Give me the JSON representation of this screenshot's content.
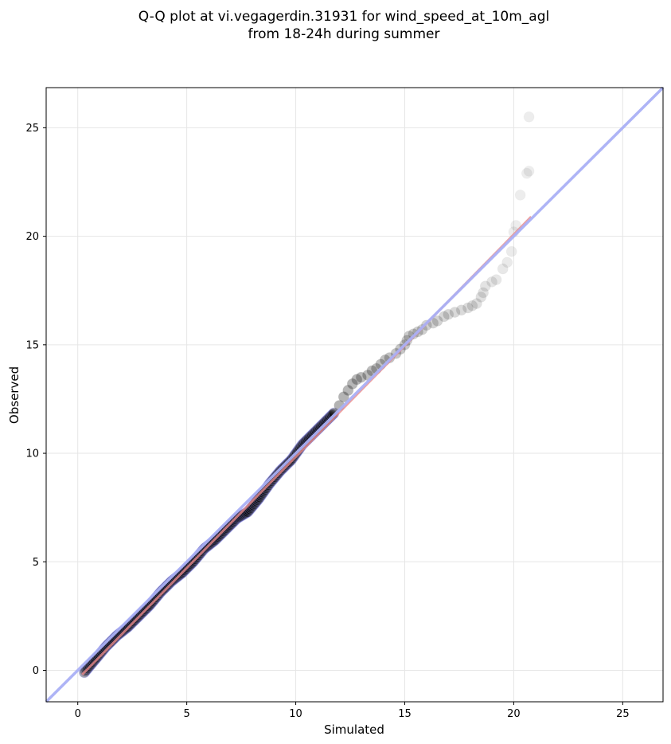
{
  "chart_data": {
    "type": "scatter",
    "title": [
      "Q-Q plot at vi.vegagerdin.31931 for wind_speed_at_10m_agl",
      "from 18-24h during summer"
    ],
    "xlabel": "Simulated",
    "ylabel": "Observed",
    "xlim": [
      -1.45,
      26.85
    ],
    "ylim": [
      -1.45,
      26.85
    ],
    "xticks": [
      0,
      5,
      10,
      15,
      20,
      25
    ],
    "yticks": [
      0,
      5,
      10,
      15,
      20,
      25
    ],
    "grid": true,
    "colors": {
      "identity_line": "#aab0f5",
      "fit_line": "#e88a8a",
      "point_fill": "#000000",
      "point_edge": "#9999ff"
    },
    "identity_line": {
      "from": [
        -1.45,
        -1.45
      ],
      "to": [
        26.85,
        26.85
      ]
    },
    "fit_line": {
      "from": [
        0.2,
        -0.2
      ],
      "to": [
        20.8,
        20.9
      ]
    },
    "points": {
      "dense_path": [
        [
          0.3,
          -0.1
        ],
        [
          0.8,
          0.5
        ],
        [
          1.3,
          1.1
        ],
        [
          1.8,
          1.6
        ],
        [
          2.3,
          2.0
        ],
        [
          2.8,
          2.5
        ],
        [
          3.3,
          3.0
        ],
        [
          3.8,
          3.6
        ],
        [
          4.3,
          4.1
        ],
        [
          4.8,
          4.5
        ],
        [
          5.3,
          5.0
        ],
        [
          5.8,
          5.6
        ],
        [
          6.3,
          6.0
        ],
        [
          6.8,
          6.5
        ],
        [
          7.3,
          7.0
        ],
        [
          7.8,
          7.3
        ],
        [
          8.3,
          7.9
        ],
        [
          8.8,
          8.6
        ],
        [
          9.3,
          9.2
        ],
        [
          9.8,
          9.7
        ],
        [
          10.3,
          10.4
        ],
        [
          10.8,
          10.9
        ],
        [
          11.3,
          11.4
        ],
        [
          11.8,
          11.9
        ]
      ],
      "tail": [
        [
          12.0,
          12.2
        ],
        [
          12.2,
          12.6
        ],
        [
          12.4,
          12.9
        ],
        [
          12.6,
          13.2
        ],
        [
          12.8,
          13.4
        ],
        [
          13.0,
          13.5
        ],
        [
          13.3,
          13.6
        ],
        [
          13.5,
          13.8
        ],
        [
          13.7,
          13.9
        ],
        [
          13.9,
          14.1
        ],
        [
          14.1,
          14.3
        ],
        [
          14.3,
          14.4
        ],
        [
          14.6,
          14.6
        ],
        [
          14.8,
          14.8
        ],
        [
          15.0,
          15.0
        ],
        [
          15.1,
          15.2
        ],
        [
          15.2,
          15.4
        ],
        [
          15.4,
          15.5
        ],
        [
          15.6,
          15.6
        ],
        [
          15.8,
          15.7
        ],
        [
          16.0,
          15.9
        ],
        [
          16.3,
          16.0
        ],
        [
          16.5,
          16.1
        ],
        [
          16.8,
          16.3
        ],
        [
          17.0,
          16.4
        ],
        [
          17.3,
          16.5
        ],
        [
          17.6,
          16.6
        ],
        [
          17.9,
          16.7
        ],
        [
          18.1,
          16.8
        ],
        [
          18.3,
          16.9
        ],
        [
          18.5,
          17.2
        ],
        [
          18.6,
          17.4
        ],
        [
          18.7,
          17.7
        ],
        [
          19.0,
          17.9
        ],
        [
          19.2,
          18.0
        ],
        [
          19.5,
          18.5
        ],
        [
          19.7,
          18.8
        ],
        [
          19.9,
          19.3
        ],
        [
          20.0,
          20.2
        ],
        [
          20.1,
          20.5
        ],
        [
          20.3,
          21.9
        ],
        [
          20.6,
          22.9
        ],
        [
          20.7,
          23.0
        ],
        [
          20.7,
          25.5
        ]
      ]
    }
  }
}
